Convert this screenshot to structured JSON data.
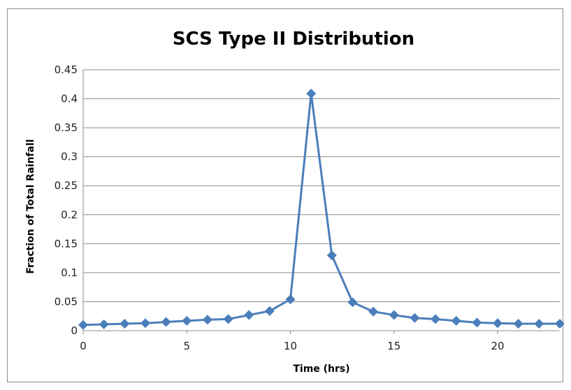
{
  "chart_data": {
    "type": "line",
    "title": "SCS Type II Distribution",
    "xlabel": "Time (hrs)",
    "ylabel": "Fraction of Total Rainfall",
    "xlim": [
      0,
      23
    ],
    "ylim": [
      0,
      0.45
    ],
    "x_ticks": [
      "0",
      "5",
      "10",
      "15",
      "20"
    ],
    "y_ticks": [
      "0",
      "0.05",
      "0.1",
      "0.15",
      "0.2",
      "0.25",
      "0.3",
      "0.35",
      "0.4",
      "0.45"
    ],
    "grid": true,
    "legend": "none",
    "marker": "diamond",
    "series": [
      {
        "color": "#4a7ebb",
        "x": [
          0,
          1,
          2,
          3,
          4,
          5,
          6,
          7,
          8,
          9,
          10,
          11,
          12,
          13,
          14,
          15,
          16,
          17,
          18,
          19,
          20,
          21,
          22,
          23
        ],
        "y": [
          0.01,
          0.011,
          0.012,
          0.013,
          0.015,
          0.017,
          0.019,
          0.02,
          0.027,
          0.034,
          0.054,
          0.409,
          0.13,
          0.049,
          0.033,
          0.027,
          0.022,
          0.02,
          0.017,
          0.014,
          0.013,
          0.012,
          0.012,
          0.012
        ]
      }
    ]
  }
}
